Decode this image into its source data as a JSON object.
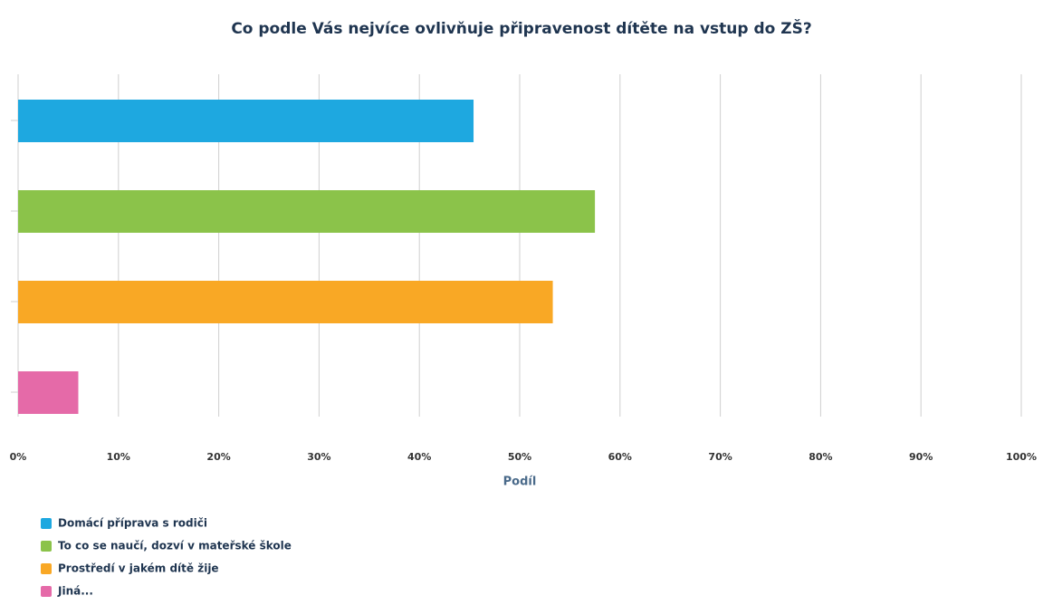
{
  "chart_data": {
    "type": "hbar",
    "title": "Co podle Vás nejvíce ovlivňuje připravenost dítěte na vstup do ZŠ?",
    "x_label": "Podíl",
    "categories": [
      "Domácí příprava s rodiči",
      "To co se naučí, dozví v mateřské škole",
      "Prostředí v jakém dítě žije",
      "Jiná..."
    ],
    "values": [
      45.4,
      57.5,
      53.3,
      6.0
    ],
    "colors": [
      "#1ea8e0",
      "#8bc34a",
      "#f9a825",
      "#e56aa8"
    ],
    "xlim": [
      0,
      100
    ],
    "xticks": [
      {
        "value": 0,
        "label": "0%"
      },
      {
        "value": 10,
        "label": "10%"
      },
      {
        "value": 20,
        "label": "20%"
      },
      {
        "value": 30,
        "label": "30%"
      },
      {
        "value": 40,
        "label": "40%"
      },
      {
        "value": 50,
        "label": "50%"
      },
      {
        "value": 60,
        "label": "60%"
      },
      {
        "value": 70,
        "label": "70%"
      },
      {
        "value": 80,
        "label": "80%"
      },
      {
        "value": 90,
        "label": "90%"
      },
      {
        "value": 100,
        "label": "100%"
      }
    ],
    "grid": true
  }
}
